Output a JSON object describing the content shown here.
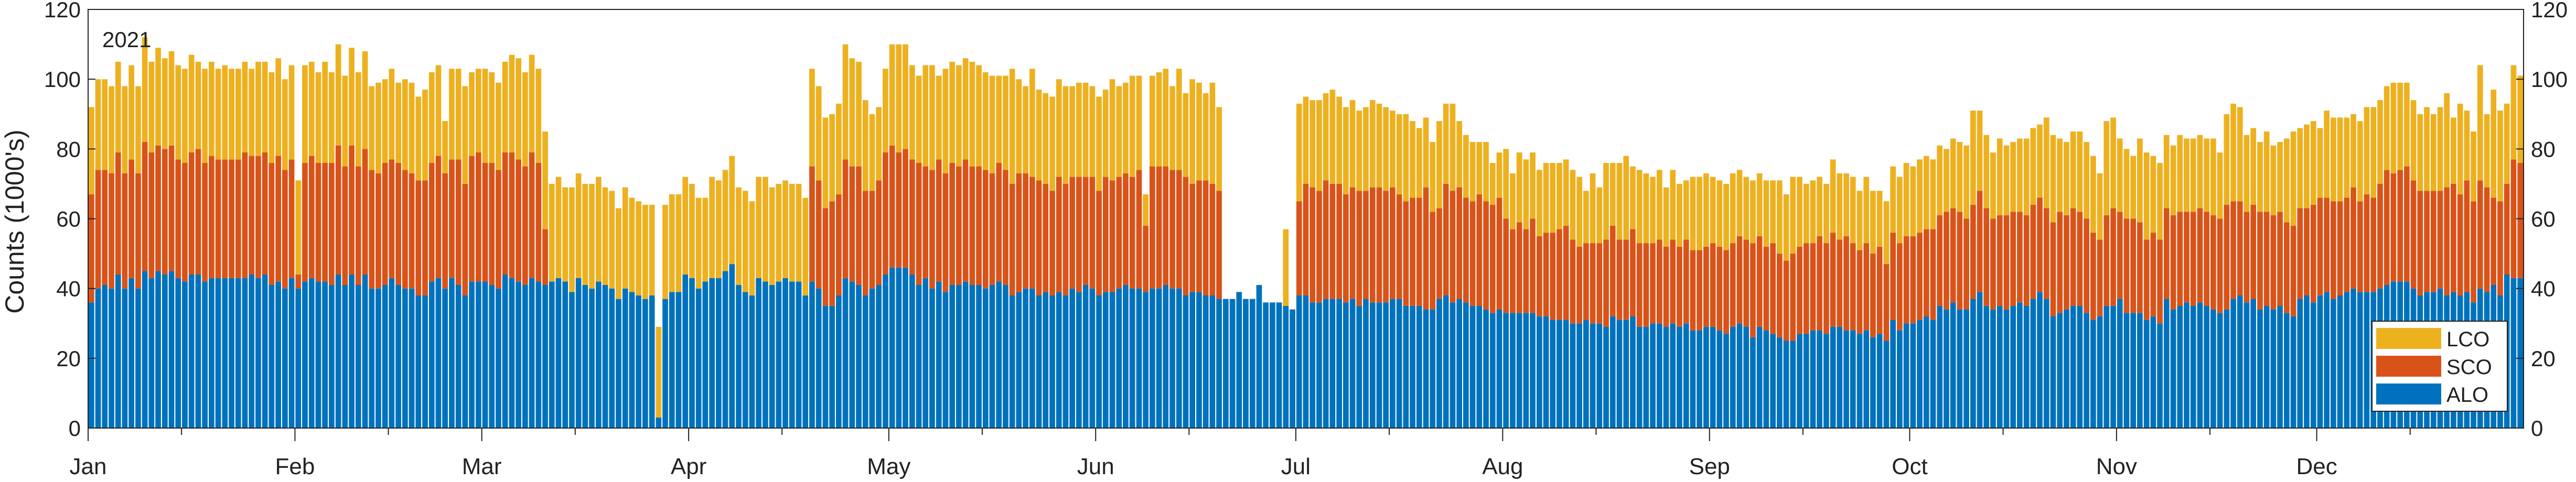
{
  "chart_data": {
    "type": "bar",
    "stacked": true,
    "annotation": "2021",
    "xlabel": "",
    "ylabel": "Counts (1000's)",
    "ylim": [
      0,
      120
    ],
    "yticks": [
      "0",
      "20",
      "40",
      "60",
      "80",
      "100",
      "120"
    ],
    "right_axis_ticks": [
      "0",
      "20",
      "40",
      "60",
      "80",
      "100",
      "120"
    ],
    "legend_position": "bottom-right",
    "grid": false,
    "series": [
      {
        "key": "lco",
        "name": "LCO",
        "color": "#EDB120"
      },
      {
        "key": "sco",
        "name": "SCO",
        "color": "#D95319"
      },
      {
        "key": "alo",
        "name": "ALO",
        "color": "#0072BD"
      }
    ],
    "months": [
      {
        "label": "Jan",
        "alo": [
          36,
          40,
          41,
          40,
          44,
          40,
          43,
          40,
          45,
          43,
          45,
          44,
          45,
          43,
          42,
          44,
          44,
          42,
          43,
          43,
          43,
          43,
          43,
          43,
          44,
          43,
          44,
          41,
          42,
          40,
          43
        ],
        "sco": [
          31,
          34,
          33,
          33,
          35,
          33,
          34,
          33,
          37,
          36,
          36,
          36,
          36,
          34,
          34,
          35,
          36,
          34,
          35,
          34,
          34,
          34,
          34,
          36,
          34,
          35,
          35,
          35,
          36,
          34,
          34
        ],
        "lco": [
          25,
          26,
          26,
          25,
          26,
          25,
          27,
          25,
          30,
          26,
          28,
          26,
          27,
          27,
          27,
          28,
          25,
          27,
          27,
          26,
          27,
          26,
          26,
          26,
          25,
          27,
          26,
          26,
          28,
          26,
          27
        ]
      },
      {
        "label": "Feb",
        "alo": [
          40,
          42,
          43,
          42,
          42,
          41,
          44,
          41,
          44,
          41,
          44,
          40,
          40,
          41,
          43,
          41,
          40,
          40,
          38,
          38,
          42,
          43,
          40,
          43,
          41,
          38,
          42,
          42
        ],
        "sco": [
          4,
          34,
          35,
          34,
          34,
          35,
          37,
          34,
          37,
          34,
          36,
          34,
          33,
          35,
          34,
          35,
          34,
          33,
          33,
          33,
          34,
          35,
          33,
          34,
          36,
          32,
          36,
          37
        ],
        "lco": [
          27,
          28,
          27,
          26,
          29,
          26,
          29,
          26,
          28,
          27,
          28,
          24,
          26,
          24,
          26,
          23,
          26,
          26,
          24,
          26,
          26,
          26,
          15,
          26,
          26,
          28,
          24,
          24
        ]
      },
      {
        "label": "Mar",
        "alo": [
          42,
          41,
          40,
          44,
          43,
          42,
          41,
          43,
          42,
          41,
          42,
          43,
          42,
          39,
          43,
          41,
          40,
          42,
          41,
          40,
          37,
          40,
          39,
          38,
          37,
          38,
          3,
          37,
          39,
          39,
          44
        ],
        "sco": [
          34,
          35,
          34,
          35,
          36,
          35,
          34,
          36,
          34,
          16,
          0,
          0,
          0,
          0,
          0,
          0,
          0,
          0,
          0,
          0,
          0,
          0,
          0,
          0,
          0,
          0,
          0,
          0,
          0,
          0,
          0
        ],
        "lco": [
          27,
          26,
          25,
          26,
          28,
          29,
          27,
          28,
          27,
          28,
          28,
          29,
          27,
          30,
          30,
          29,
          30,
          30,
          28,
          28,
          26,
          29,
          27,
          27,
          27,
          26,
          26,
          27,
          28,
          28,
          28
        ]
      },
      {
        "label": "Apr",
        "alo": [
          43,
          40,
          42,
          43,
          43,
          45,
          47,
          41,
          39,
          38,
          43,
          42,
          41,
          42,
          43,
          42,
          42,
          38,
          42,
          40,
          35,
          35,
          38,
          43,
          42,
          41,
          38,
          40,
          41,
          44
        ],
        "sco": [
          0,
          0,
          0,
          0,
          0,
          0,
          0,
          0,
          0,
          0,
          0,
          0,
          0,
          0,
          0,
          0,
          0,
          0,
          33,
          31,
          28,
          30,
          29,
          34,
          33,
          34,
          30,
          28,
          30,
          35
        ],
        "lco": [
          27,
          26,
          24,
          29,
          28,
          29,
          31,
          28,
          29,
          27,
          29,
          30,
          28,
          28,
          28,
          28,
          28,
          28,
          28,
          27,
          26,
          25,
          26,
          33,
          31,
          30,
          26,
          22,
          21,
          24
        ]
      },
      {
        "label": "May",
        "alo": [
          46,
          46,
          46,
          44,
          41,
          43,
          40,
          42,
          39,
          41,
          41,
          42,
          41,
          41,
          40,
          41,
          42,
          41,
          38,
          39,
          40,
          40,
          38,
          39,
          38,
          39,
          38,
          40,
          39,
          41,
          40
        ],
        "sco": [
          35,
          33,
          34,
          33,
          35,
          32,
          34,
          35,
          34,
          35,
          34,
          35,
          34,
          34,
          34,
          32,
          34,
          33,
          32,
          34,
          33,
          32,
          33,
          31,
          30,
          33,
          32,
          32,
          33,
          31,
          32
        ],
        "lco": [
          29,
          31,
          30,
          27,
          25,
          29,
          30,
          24,
          30,
          29,
          29,
          29,
          30,
          29,
          28,
          28,
          25,
          27,
          33,
          27,
          25,
          31,
          26,
          26,
          27,
          28,
          28,
          26,
          27,
          27,
          26
        ]
      },
      {
        "label": "Jun",
        "alo": [
          38,
          39,
          39,
          40,
          41,
          40,
          40,
          39,
          40,
          40,
          41,
          40,
          40,
          38,
          39,
          39,
          38,
          38,
          37,
          37,
          37,
          39,
          37,
          37,
          41,
          36,
          36,
          36,
          35,
          34
        ],
        "sco": [
          30,
          33,
          32,
          32,
          32,
          32,
          34,
          19,
          35,
          35,
          34,
          34,
          34,
          34,
          31,
          32,
          33,
          32,
          31,
          0,
          0,
          0,
          0,
          0,
          0,
          0,
          0,
          0,
          0,
          0
        ],
        "lco": [
          27,
          25,
          29,
          26,
          26,
          29,
          27,
          9,
          26,
          27,
          28,
          24,
          29,
          24,
          30,
          28,
          25,
          29,
          24,
          0,
          0,
          0,
          0,
          0,
          0,
          0,
          0,
          0,
          22,
          0
        ]
      },
      {
        "label": "Jul",
        "alo": [
          38,
          38,
          36,
          36,
          37,
          37,
          37,
          36,
          37,
          35,
          37,
          36,
          36,
          36,
          37,
          37,
          35,
          35,
          35,
          34,
          34,
          37,
          38,
          36,
          37,
          36,
          35,
          35,
          34,
          33,
          34
        ],
        "sco": [
          27,
          32,
          33,
          32,
          34,
          33,
          33,
          31,
          32,
          33,
          31,
          33,
          33,
          32,
          32,
          30,
          30,
          31,
          31,
          35,
          28,
          26,
          32,
          32,
          32,
          30,
          30,
          32,
          31,
          31,
          32
        ],
        "lco": [
          28,
          25,
          25,
          26,
          25,
          27,
          25,
          25,
          25,
          23,
          24,
          25,
          24,
          24,
          22,
          23,
          25,
          22,
          20,
          20,
          20,
          25,
          23,
          25,
          19,
          18,
          17,
          15,
          17,
          12,
          13
        ]
      },
      {
        "label": "Aug",
        "alo": [
          33,
          33,
          33,
          33,
          33,
          32,
          32,
          31,
          31,
          31,
          30,
          30,
          31,
          30,
          30,
          29,
          32,
          31,
          31,
          32,
          29,
          29,
          30,
          30,
          29,
          30,
          29,
          30,
          28,
          28,
          29
        ],
        "sco": [
          27,
          24,
          26,
          24,
          27,
          23,
          24,
          25,
          26,
          27,
          24,
          22,
          22,
          23,
          23,
          25,
          26,
          23,
          23,
          25,
          24,
          24,
          23,
          24,
          23,
          24,
          23,
          24,
          23,
          23,
          23
        ],
        "lco": [
          20,
          16,
          20,
          20,
          19,
          19,
          20,
          20,
          19,
          19,
          20,
          20,
          15,
          20,
          16,
          22,
          18,
          22,
          24,
          18,
          21,
          20,
          19,
          20,
          17,
          20,
          18,
          17,
          21,
          21,
          21
        ]
      },
      {
        "label": "Sep",
        "alo": [
          29,
          28,
          27,
          29,
          30,
          29,
          26,
          29,
          28,
          27,
          26,
          25,
          25,
          27,
          27,
          28,
          28,
          27,
          29,
          29,
          28,
          28,
          27,
          28,
          26,
          27,
          25,
          31,
          28,
          30
        ],
        "sco": [
          24,
          24,
          24,
          24,
          25,
          25,
          27,
          26,
          24,
          26,
          24,
          23,
          25,
          25,
          26,
          25,
          27,
          26,
          27,
          25,
          27,
          25,
          24,
          25,
          24,
          25,
          22,
          25,
          25,
          25
        ],
        "lco": [
          19,
          19,
          19,
          20,
          19,
          18,
          18,
          18,
          19,
          18,
          21,
          19,
          22,
          20,
          17,
          18,
          17,
          17,
          21,
          19,
          18,
          19,
          17,
          19,
          18,
          16,
          18,
          19,
          19,
          21
        ]
      },
      {
        "label": "Oct",
        "alo": [
          30,
          31,
          32,
          31,
          35,
          34,
          36,
          34,
          34,
          37,
          39,
          35,
          34,
          35,
          34,
          35,
          36,
          35,
          37,
          39,
          37,
          32,
          33,
          34,
          35,
          35,
          33,
          31,
          32,
          35,
          35
        ],
        "sco": [
          25,
          25,
          25,
          26,
          26,
          28,
          27,
          28,
          26,
          27,
          29,
          28,
          26,
          26,
          27,
          27,
          26,
          26,
          27,
          27,
          26,
          27,
          29,
          27,
          28,
          27,
          27,
          25,
          22,
          26,
          28
        ],
        "lco": [
          20,
          21,
          21,
          20,
          20,
          18,
          20,
          20,
          21,
          27,
          23,
          21,
          19,
          22,
          20,
          20,
          21,
          22,
          22,
          21,
          26,
          25,
          21,
          21,
          22,
          23,
          22,
          22,
          19,
          27,
          26
        ]
      },
      {
        "label": "Nov",
        "alo": [
          37,
          33,
          33,
          33,
          31,
          32,
          30,
          37,
          34,
          35,
          36,
          35,
          36,
          35,
          34,
          33,
          34,
          37,
          38,
          36,
          37,
          34,
          35,
          34,
          35,
          33,
          32,
          37,
          38,
          36
        ],
        "sco": [
          25,
          27,
          27,
          26,
          23,
          24,
          24,
          26,
          27,
          27,
          26,
          27,
          27,
          27,
          27,
          27,
          30,
          28,
          27,
          26,
          27,
          28,
          27,
          27,
          27,
          26,
          26,
          26,
          25,
          28
        ],
        "lco": [
          21,
          20,
          18,
          24,
          25,
          22,
          22,
          21,
          20,
          22,
          21,
          21,
          21,
          21,
          22,
          19,
          26,
          28,
          27,
          22,
          22,
          20,
          23,
          20,
          20,
          24,
          27,
          23,
          24,
          24
        ]
      },
      {
        "label": "Dec",
        "alo": [
          38,
          39,
          37,
          38,
          39,
          40,
          39,
          39,
          39,
          40,
          41,
          42,
          42,
          42,
          40,
          38,
          39,
          39,
          40,
          38,
          39,
          38,
          39,
          36,
          40,
          39,
          41,
          38,
          44,
          43,
          43
        ],
        "sco": [
          28,
          27,
          28,
          27,
          27,
          29,
          26,
          28,
          27,
          30,
          33,
          31,
          32,
          33,
          31,
          30,
          29,
          29,
          28,
          31,
          31,
          29,
          32,
          29,
          31,
          30,
          25,
          27,
          26,
          34,
          33
        ],
        "lco": [
          20,
          25,
          24,
          24,
          23,
          21,
          23,
          25,
          26,
          24,
          24,
          26,
          25,
          24,
          23,
          22,
          24,
          22,
          24,
          27,
          19,
          26,
          20,
          20,
          33,
          21,
          31,
          26,
          23,
          27,
          25
        ]
      }
    ]
  }
}
